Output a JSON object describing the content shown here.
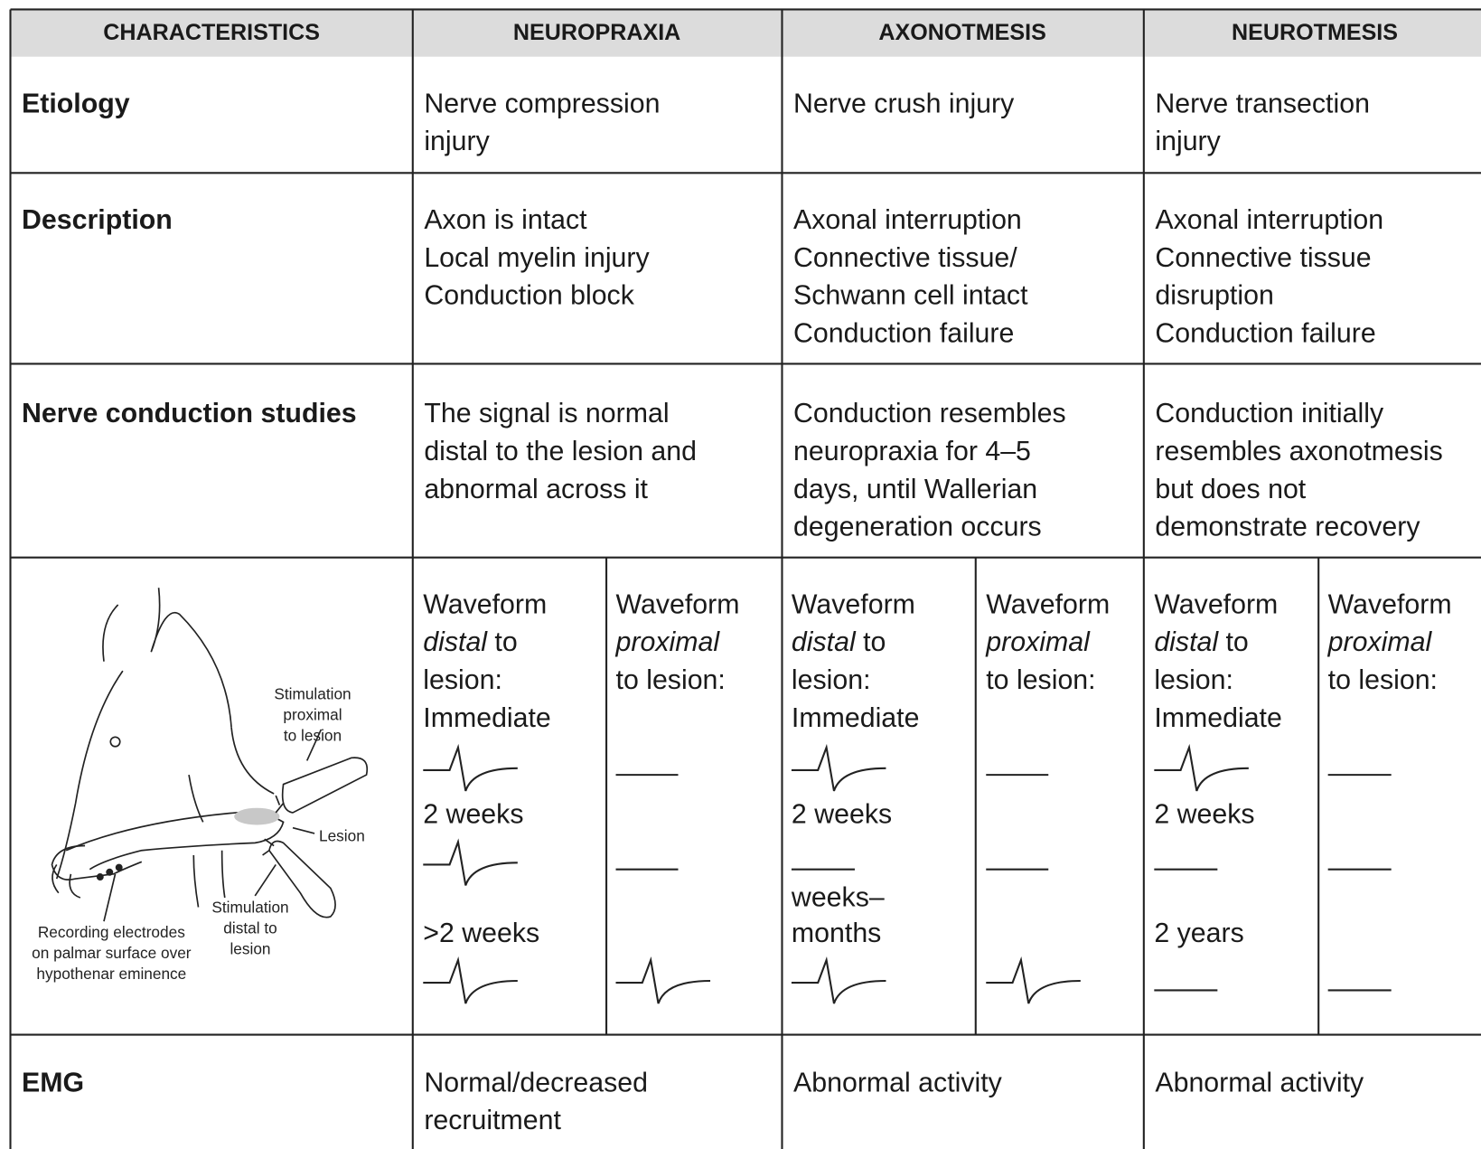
{
  "header": [
    "CHARACTERISTICS",
    "NEUROPRAXIA",
    "AXONOTMESIS",
    "NEUROTMESIS"
  ],
  "rows": [
    {
      "label": "Etiology",
      "cells": [
        [
          "Nerve compression",
          "injury"
        ],
        [
          "Nerve crush injury"
        ],
        [
          "Nerve transection",
          "injury"
        ]
      ]
    },
    {
      "label": "Description",
      "cells": [
        [
          "Axon is intact",
          "Local myelin injury",
          "Conduction block"
        ],
        [
          "Axonal interruption",
          "Connective tissue/",
          "Schwann cell intact",
          "Conduction failure"
        ],
        [
          "Axonal interruption",
          "Connective tissue",
          "disruption",
          "Conduction failure"
        ]
      ]
    },
    {
      "label": "Nerve conduction studies",
      "cells": [
        [
          "The signal is normal",
          "distal to the lesion and",
          "abnormal across it"
        ],
        [
          "Conduction resembles",
          "neuropraxia for 4–5",
          "days, until Wallerian",
          "degeneration occurs"
        ],
        [
          "Conduction initially",
          "resembles axonotmesis",
          "but does not",
          "demonstrate recovery"
        ]
      ]
    },
    {
      "label": "EMG",
      "cells": [
        [
          "Normal/decreased",
          "recruitment"
        ],
        [
          "Abnormal activity"
        ],
        [
          "Abnormal activity"
        ]
      ]
    }
  ],
  "waveforms": {
    "illustration": {
      "proximal_stimulation": [
        "Stimulation",
        "proximal",
        "to lesion"
      ],
      "lesion": "Lesion",
      "distal_stimulation": [
        "Stimulation",
        "distal to",
        "lesion"
      ],
      "recording": [
        "Recording electrodes",
        "on palmar surface over",
        "hypothenar eminence"
      ]
    },
    "columns": [
      {
        "distal_heading": [
          "Waveform",
          "distal",
          "to",
          "lesion:"
        ],
        "distal_times": [
          [
            "Immediate"
          ],
          [
            "2 weeks"
          ],
          [
            ">2 weeks"
          ]
        ],
        "proximal_heading": [
          "Waveform",
          "proximal",
          "to lesion:"
        ]
      },
      {
        "distal_heading": [
          "Waveform",
          "distal",
          "to",
          "lesion:"
        ],
        "distal_times": [
          [
            "Immediate"
          ],
          [
            "2 weeks"
          ],
          [
            "weeks–",
            "months"
          ]
        ],
        "proximal_heading": [
          "Waveform",
          "proximal",
          "to lesion:"
        ]
      },
      {
        "distal_heading": [
          "Waveform",
          "distal",
          "to",
          "lesion:"
        ],
        "distal_times": [
          [
            "Immediate"
          ],
          [
            "2 weeks"
          ],
          [
            "2 years"
          ]
        ],
        "proximal_heading": [
          "Waveform",
          "proximal",
          "to lesion:"
        ]
      }
    ]
  }
}
